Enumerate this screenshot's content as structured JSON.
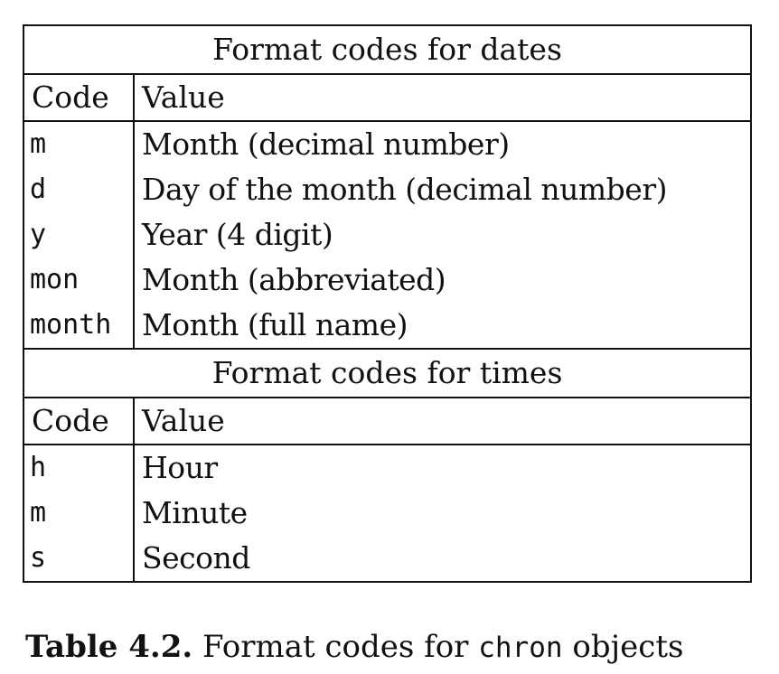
{
  "dates_section": {
    "title": "Format codes for dates",
    "headers": {
      "code": "Code",
      "value": "Value"
    },
    "rows": [
      {
        "code": "m",
        "value": "Month (decimal number)"
      },
      {
        "code": "d",
        "value": "Day of the month (decimal number)"
      },
      {
        "code": "y",
        "value": "Year (4 digit)"
      },
      {
        "code": "mon",
        "value": "Month (abbreviated)"
      },
      {
        "code": "month",
        "value": "Month (full name)"
      }
    ]
  },
  "times_section": {
    "title": "Format codes for times",
    "headers": {
      "code": "Code",
      "value": "Value"
    },
    "rows": [
      {
        "code": "h",
        "value": "Hour"
      },
      {
        "code": "m",
        "value": "Minute"
      },
      {
        "code": "s",
        "value": "Second"
      }
    ]
  },
  "caption": {
    "label": "Table 4.2.",
    "text_before": " Format codes for ",
    "code": "chron",
    "text_after": " objects"
  }
}
